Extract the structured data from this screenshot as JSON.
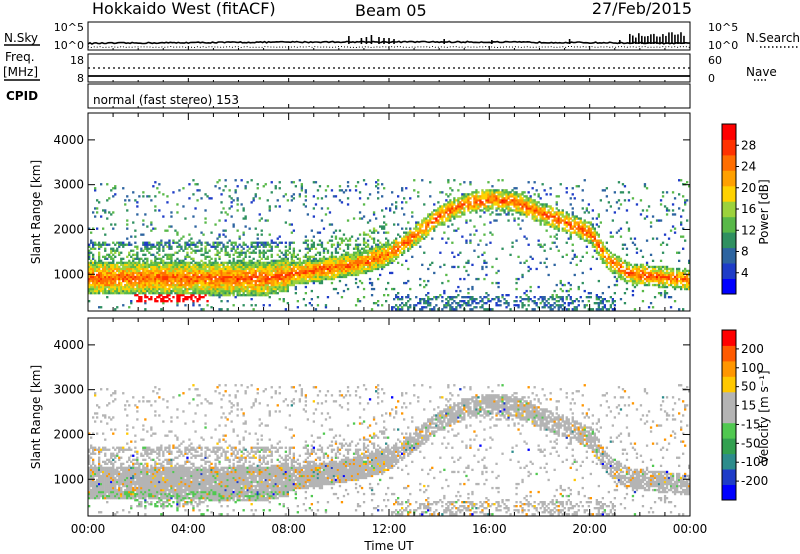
{
  "header": {
    "station": "Hokkaido West (fitACF)",
    "beam": "Beam 05",
    "date": "27/Feb/2015"
  },
  "strip_panel": {
    "left_labels": [
      "N.Sky",
      "Freq.",
      "[MHz]",
      "CPID"
    ],
    "right_labels": [
      "N.Search",
      "Nave"
    ],
    "nsky_ticks": [
      "10^5",
      "10^0"
    ],
    "freq_ticks": [
      "18",
      "8"
    ],
    "nave_ticks": [
      "60",
      "0"
    ],
    "cpid_text": "normal (fast stereo) 153"
  },
  "chart_data": [
    {
      "type": "heatmap",
      "name": "power",
      "ylabel": "Slant Range [km]",
      "xlabel": "",
      "x_range_hours": [
        0,
        24
      ],
      "ylim": [
        180,
        4600
      ],
      "y_ticks": [
        1000,
        2000,
        3000,
        4000
      ],
      "colorbar_label": "Power [dB]",
      "colorbar_ticks": [
        "28",
        "24",
        "20",
        "16",
        "12",
        "8",
        "4"
      ],
      "colorbar_range": [
        0,
        32
      ],
      "colors": [
        "#0000ff",
        "#1e3cc8",
        "#2d64a0",
        "#2f9060",
        "#58b848",
        "#9cd23c",
        "#ffd200",
        "#ffa000",
        "#ff6e00",
        "#ff3200",
        "#ff0000"
      ]
    },
    {
      "type": "heatmap",
      "name": "velocity",
      "ylabel": "Slant Range [km]",
      "xlabel": "Time UT",
      "x_range_hours": [
        0,
        24
      ],
      "ylim": [
        180,
        4600
      ],
      "y_ticks": [
        1000,
        2000,
        3000,
        4000
      ],
      "colorbar_label": "Velocity [m s⁻¹]",
      "colorbar_ticks": [
        "200",
        "100",
        "50",
        "15",
        "-15",
        "-50",
        "-100",
        "-200"
      ],
      "colors": [
        "#ff0000",
        "#ff5a00",
        "#ff9600",
        "#ffc800",
        "#b4b4b4",
        "#b4b4b4",
        "#50c850",
        "#32a050",
        "#2d8c8c",
        "#1e3cc8",
        "#0000ff"
      ],
      "x_tick_labels": [
        "00:00",
        "04:00",
        "08:00",
        "12:00",
        "16:00",
        "20:00",
        "00:00"
      ]
    }
  ],
  "echo_bands": [
    {
      "t0": 0.0,
      "t1": 8.0,
      "r0": 560,
      "r1": 1300,
      "kind": "strong"
    },
    {
      "t0": 8.0,
      "t1": 12.0,
      "r0": 820,
      "r1": 1600,
      "kind": "strong"
    },
    {
      "t0": 12.0,
      "t1": 15.0,
      "r0": 1600,
      "r1": 2700,
      "kind": "strong"
    },
    {
      "t0": 15.0,
      "t1": 19.0,
      "r0": 2300,
      "r1": 2900,
      "kind": "strong"
    },
    {
      "t0": 19.0,
      "t1": 21.0,
      "r0": 1200,
      "r1": 2400,
      "kind": "strong"
    },
    {
      "t0": 21.0,
      "t1": 24.0,
      "r0": 560,
      "r1": 1400,
      "kind": "strong"
    },
    {
      "t0": 0.0,
      "t1": 10.0,
      "r0": 1300,
      "r1": 2700,
      "kind": "weak"
    },
    {
      "t0": 11.0,
      "t1": 22.0,
      "r0": 300,
      "r1": 3000,
      "kind": "sparse"
    }
  ]
}
